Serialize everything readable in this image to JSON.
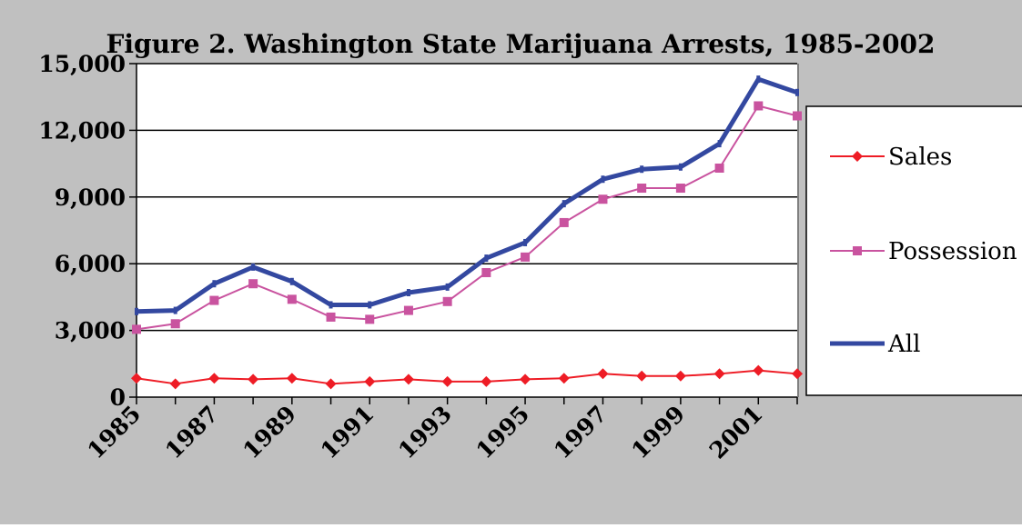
{
  "chart_data": {
    "type": "line",
    "title": "Figure 2. Washington State Marijuana Arrests, 1985-2002",
    "xlabel": "",
    "ylabel": "",
    "ylim": [
      0,
      15000
    ],
    "yticks": [
      0,
      3000,
      6000,
      9000,
      12000,
      15000
    ],
    "ytick_labels": [
      "0",
      "3,000",
      "6,000",
      "9,000",
      "12,000",
      "15,000"
    ],
    "x": [
      1985,
      1986,
      1987,
      1988,
      1989,
      1990,
      1991,
      1992,
      1993,
      1994,
      1995,
      1996,
      1997,
      1998,
      1999,
      2000,
      2001,
      2002
    ],
    "xtick_labels": [
      "1985",
      "1987",
      "1989",
      "1991",
      "1993",
      "1995",
      "1997",
      "1999",
      "2001"
    ],
    "grid": true,
    "legend_position": "right",
    "series": [
      {
        "name": "Sales",
        "color": "#ee1c25",
        "marker": "diamond",
        "values": [
          850,
          600,
          850,
          800,
          850,
          600,
          700,
          800,
          700,
          700,
          800,
          850,
          1050,
          950,
          950,
          1050,
          1200,
          1050
        ]
      },
      {
        "name": "Possession",
        "color": "#c9539f",
        "marker": "square",
        "values": [
          3050,
          3300,
          4350,
          5100,
          4400,
          3600,
          3500,
          3900,
          4300,
          5600,
          6300,
          7850,
          8900,
          9400,
          9400,
          10300,
          13100,
          12650
        ]
      },
      {
        "name": "All",
        "color": "#3348a0",
        "marker": "none",
        "values": [
          3850,
          3900,
          5100,
          5850,
          5200,
          4150,
          4150,
          4700,
          4950,
          6250,
          6950,
          8700,
          9800,
          10250,
          10350,
          11400,
          14300,
          13700
        ]
      }
    ]
  }
}
